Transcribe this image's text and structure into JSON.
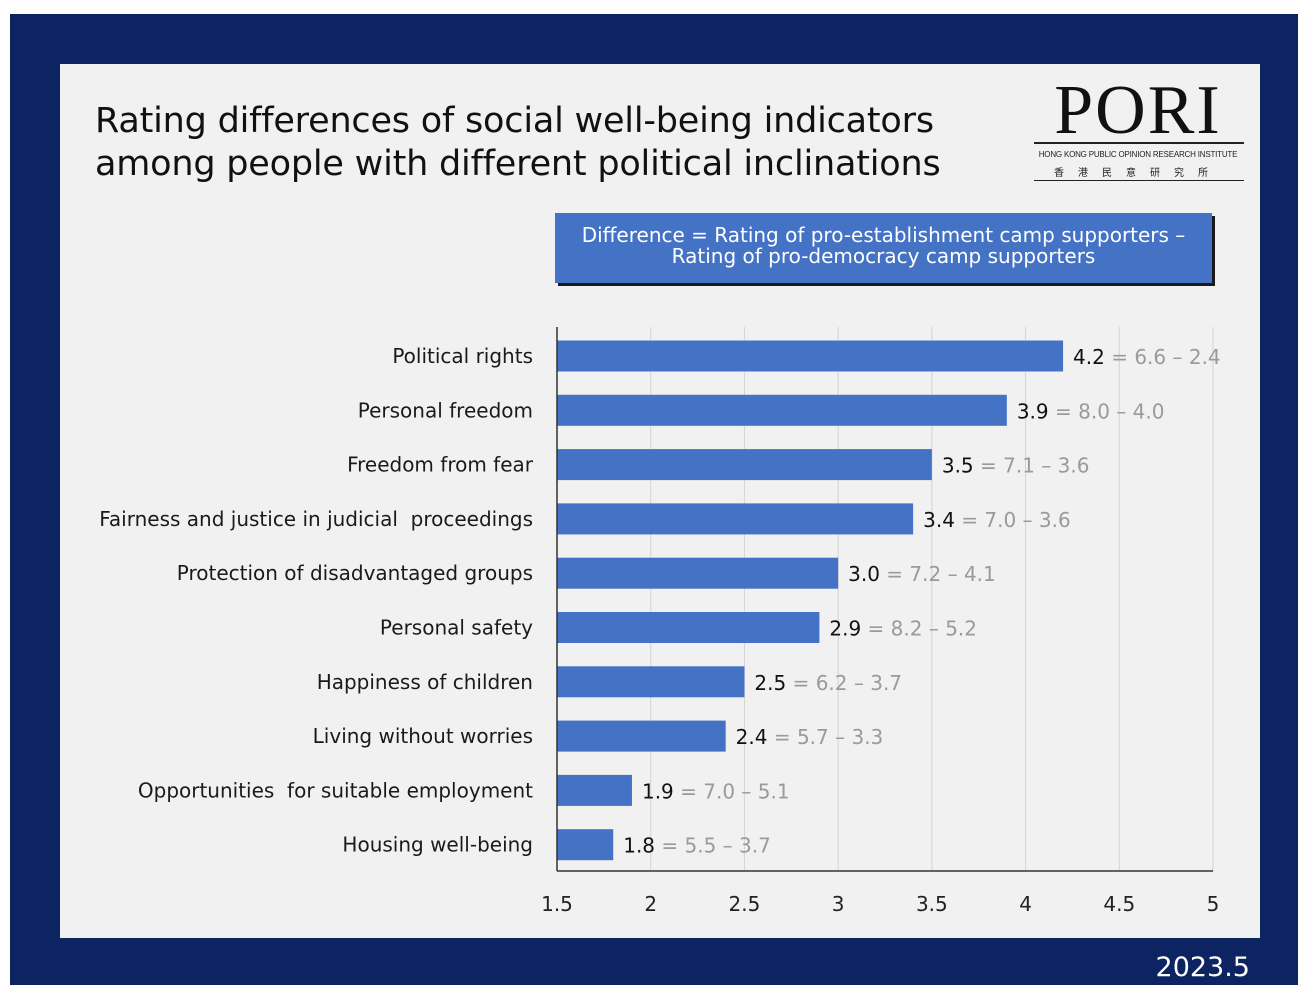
{
  "title_lines": [
    "Rating differences of social well-being indicators",
    "among people with different political inclinations"
  ],
  "logo": {
    "name": "PORI",
    "full_name": "HONG KONG PUBLIC OPINION RESEARCH INSTITUTE",
    "chinese_name": "香港民意研究所"
  },
  "legend_lines": [
    "Difference = Rating of pro-establishment camp supporters –",
    "Rating of pro-democracy camp supporters"
  ],
  "date": "2023.5",
  "colors": {
    "frame": "#0c2461",
    "panel": "#f1f1f1",
    "bar": "#4472c4",
    "legend_box": "#4472c4",
    "annotation_rest": "#9a9a9a"
  },
  "chart_data": {
    "type": "bar",
    "orientation": "horizontal",
    "categories": [
      "Political rights",
      "Personal freedom",
      "Freedom from fear",
      "Fairness and justice in judicial  proceedings",
      "Protection of disadvantaged groups",
      "Personal safety",
      "Happiness of children",
      "Living without worries",
      "Opportunities  for suitable employment",
      "Housing well-being"
    ],
    "values": [
      4.2,
      3.9,
      3.5,
      3.4,
      3.0,
      2.9,
      2.5,
      2.4,
      1.9,
      1.8
    ],
    "value_labels": [
      "4.2",
      "3.9",
      "3.5",
      "3.4",
      "3.0",
      "2.9",
      "2.5",
      "2.4",
      "1.9",
      "1.8"
    ],
    "annotations": [
      " = 6.6 – 2.4",
      " = 8.0 – 4.0",
      " = 7.1 – 3.6",
      " = 7.0 – 3.6",
      " = 7.2 – 4.1",
      " = 8.2 – 5.2",
      " = 6.2 – 3.7",
      " = 5.7 – 3.3",
      " = 7.0 – 5.1",
      " = 5.5 – 3.7"
    ],
    "x_ticks": [
      1.5,
      2,
      2.5,
      3,
      3.5,
      4,
      4.5,
      5
    ],
    "x_tick_labels": [
      "1.5",
      "2",
      "2.5",
      "3",
      "3.5",
      "4",
      "4.5",
      "5"
    ],
    "xlim": [
      1.5,
      5
    ],
    "grid": "vertical",
    "title": "",
    "xlabel": "",
    "ylabel": ""
  }
}
